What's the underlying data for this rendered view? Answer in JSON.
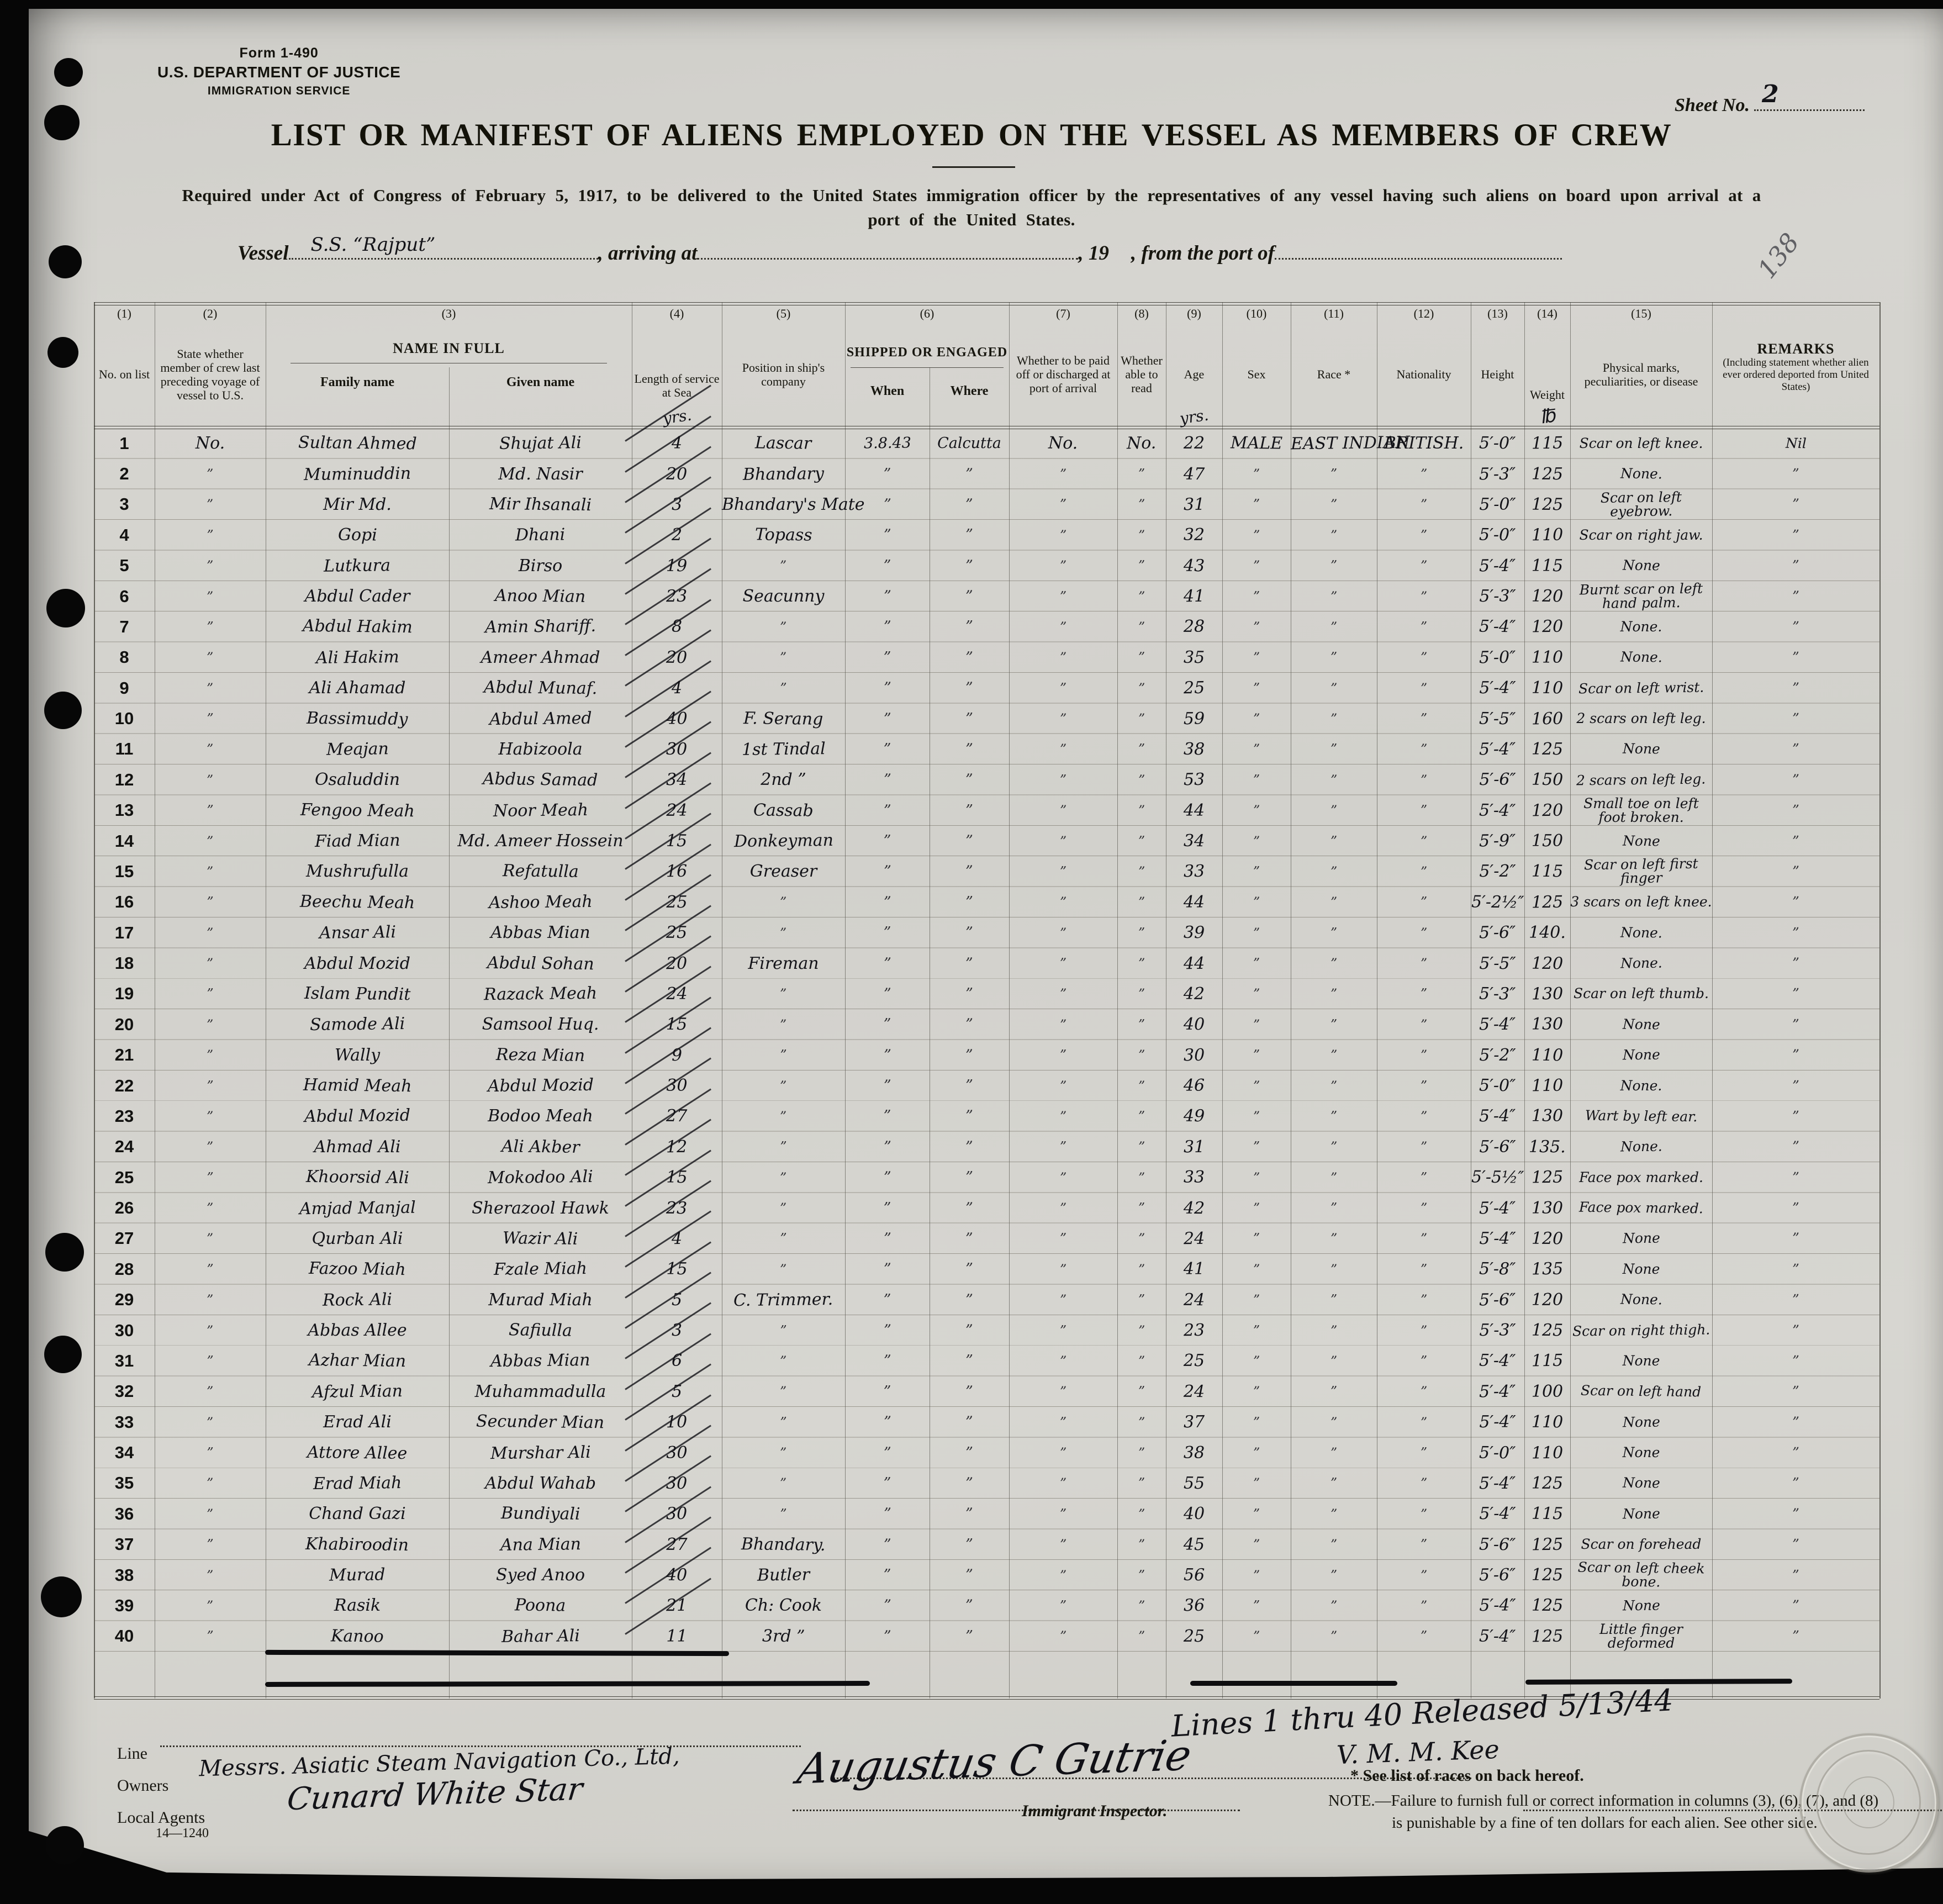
{
  "form": {
    "form_no": "Form 1-490",
    "dept": "U.S. DEPARTMENT OF JUSTICE",
    "service": "IMMIGRATION SERVICE",
    "sheet_label": "Sheet No.",
    "sheet_value": "2",
    "stamp_number": "138",
    "title": "LIST OR MANIFEST OF ALIENS EMPLOYED ON THE VESSEL AS MEMBERS OF CREW",
    "subtitle1": "Required under Act of Congress of February 5, 1917, to be delivered to the United States immigration officer by the representatives of any vessel having such aliens on board upon arrival at a",
    "subtitle2": "port of the United States.",
    "vessel_label": "Vessel",
    "vessel_value": "S.S. “Rajput”",
    "arriving_label": ", arriving at",
    "year_label": ", 19",
    "from_port_label": ", from the port of"
  },
  "table": {
    "numbers": [
      "(1)",
      "(2)",
      "(3)",
      "(4)",
      "(5)",
      "(6)",
      "(7)",
      "(8)",
      "(9)",
      "(10)",
      "(11)",
      "(12)",
      "(13)",
      "(14)",
      "(15)"
    ],
    "headers": {
      "no_on_list": "No. on list",
      "state_whether": "State whether member of crew last preceding voyage of vessel to U.S.",
      "name_in_full": "NAME IN FULL",
      "family_name": "Family name",
      "given_name": "Given name",
      "length_of_service": "Length of service at Sea",
      "length_unit_hw": "yrs.",
      "position": "Position in ship's company",
      "shipped_or_engaged": "SHIPPED OR ENGAGED",
      "when": "When",
      "where": "Where",
      "paid_off": "Whether to be paid off or discharged at port of arrival",
      "able_to_read": "Whether able to read",
      "age": "Age",
      "age_unit_hw": "yrs.",
      "sex": "Sex",
      "race": "Race *",
      "nationality": "Nationality",
      "height": "Height",
      "weight": "Weight",
      "weight_unit_hw": "℔",
      "marks": "Physical marks, peculiarities, or disease",
      "remarks_title": "REMARKS",
      "remarks_sub": "(Including statement whether alien ever ordered deported from United States)"
    },
    "rows": [
      [
        "1",
        "No.",
        "Sultan Ahmed",
        "Shujat Ali",
        "4",
        "Lascar",
        "3.8.43",
        "Calcutta",
        "No.",
        "No.",
        "22",
        "MALE",
        "EAST INDIAN",
        "BRITISH.",
        "5′-0″",
        "115",
        "Scar on left knee.",
        "Nil"
      ],
      [
        "2",
        "”",
        "Muminuddin",
        "Md. Nasir",
        "20",
        "Bhandary",
        "”",
        "”",
        "”",
        "”",
        "47",
        "”",
        "”",
        "”",
        "5′-3″",
        "125",
        "None.",
        "”"
      ],
      [
        "3",
        "”",
        "Mir Md.",
        "Mir Ihsanali",
        "3",
        "Bhandary's Mate",
        "”",
        "”",
        "”",
        "”",
        "31",
        "”",
        "”",
        "”",
        "5′-0″",
        "125",
        "Scar on left eyebrow.",
        "”"
      ],
      [
        "4",
        "”",
        "Gopi",
        "Dhani",
        "2",
        "Topass",
        "”",
        "”",
        "”",
        "”",
        "32",
        "”",
        "”",
        "”",
        "5′-0″",
        "110",
        "Scar on right jaw.",
        "”"
      ],
      [
        "5",
        "”",
        "Lutkura",
        "Birso",
        "19",
        "”",
        "”",
        "”",
        "”",
        "”",
        "43",
        "”",
        "”",
        "”",
        "5′-4″",
        "115",
        "None",
        "”"
      ],
      [
        "6",
        "”",
        "Abdul Cader",
        "Anoo Mian",
        "23",
        "Seacunny",
        "”",
        "”",
        "”",
        "”",
        "41",
        "”",
        "”",
        "”",
        "5′-3″",
        "120",
        "Burnt scar on left hand palm.",
        "”"
      ],
      [
        "7",
        "”",
        "Abdul Hakim",
        "Amin Shariff.",
        "8",
        "”",
        "”",
        "”",
        "”",
        "”",
        "28",
        "”",
        "”",
        "”",
        "5′-4″",
        "120",
        "None.",
        "”"
      ],
      [
        "8",
        "”",
        "Ali Hakim",
        "Ameer Ahmad",
        "20",
        "”",
        "”",
        "”",
        "”",
        "”",
        "35",
        "”",
        "”",
        "”",
        "5′-0″",
        "110",
        "None.",
        "”"
      ],
      [
        "9",
        "”",
        "Ali Ahamad",
        "Abdul Munaf.",
        "4",
        "”",
        "”",
        "”",
        "”",
        "”",
        "25",
        "”",
        "”",
        "”",
        "5′-4″",
        "110",
        "Scar on left wrist.",
        "”"
      ],
      [
        "10",
        "”",
        "Bassimuddy",
        "Abdul Amed",
        "40",
        "F. Serang",
        "”",
        "”",
        "”",
        "”",
        "59",
        "”",
        "”",
        "”",
        "5′-5″",
        "160",
        "2 scars on left leg.",
        "”"
      ],
      [
        "11",
        "”",
        "Meajan",
        "Habizoola",
        "30",
        "1st Tindal",
        "”",
        "”",
        "”",
        "”",
        "38",
        "”",
        "”",
        "”",
        "5′-4″",
        "125",
        "None",
        "”"
      ],
      [
        "12",
        "”",
        "Osaluddin",
        "Abdus Samad",
        "34",
        "2nd ”",
        "”",
        "”",
        "”",
        "”",
        "53",
        "”",
        "”",
        "”",
        "5′-6″",
        "150",
        "2 scars on left leg.",
        "”"
      ],
      [
        "13",
        "”",
        "Fengoo Meah",
        "Noor Meah",
        "24",
        "Cassab",
        "”",
        "”",
        "”",
        "”",
        "44",
        "”",
        "”",
        "”",
        "5′-4″",
        "120",
        "Small toe on left foot broken.",
        "”"
      ],
      [
        "14",
        "”",
        "Fiad Mian",
        "Md. Ameer Hossein",
        "15",
        "Donkeyman",
        "”",
        "”",
        "”",
        "”",
        "34",
        "”",
        "”",
        "”",
        "5′-9″",
        "150",
        "None",
        "”"
      ],
      [
        "15",
        "”",
        "Mushrufulla",
        "Refatulla",
        "16",
        "Greaser",
        "”",
        "”",
        "”",
        "”",
        "33",
        "”",
        "”",
        "”",
        "5′-2″",
        "115",
        "Scar on left first finger",
        "”"
      ],
      [
        "16",
        "”",
        "Beechu Meah",
        "Ashoo Meah",
        "25",
        "”",
        "”",
        "”",
        "”",
        "”",
        "44",
        "”",
        "”",
        "”",
        "5′-2½″",
        "125",
        "3 scars on left knee.",
        "”"
      ],
      [
        "17",
        "”",
        "Ansar Ali",
        "Abbas Mian",
        "25",
        "”",
        "”",
        "”",
        "”",
        "”",
        "39",
        "”",
        "”",
        "”",
        "5′-6″",
        "140.",
        "None.",
        "”"
      ],
      [
        "18",
        "”",
        "Abdul Mozid",
        "Abdul Sohan",
        "20",
        "Fireman",
        "”",
        "”",
        "”",
        "”",
        "44",
        "”",
        "”",
        "”",
        "5′-5″",
        "120",
        "None.",
        "”"
      ],
      [
        "19",
        "”",
        "Islam Pundit",
        "Razack Meah",
        "24",
        "”",
        "”",
        "”",
        "”",
        "”",
        "42",
        "”",
        "”",
        "”",
        "5′-3″",
        "130",
        "Scar on left thumb.",
        "”"
      ],
      [
        "20",
        "”",
        "Samode Ali",
        "Samsool Huq.",
        "15",
        "”",
        "”",
        "”",
        "”",
        "”",
        "40",
        "”",
        "”",
        "”",
        "5′-4″",
        "130",
        "None",
        "”"
      ],
      [
        "21",
        "”",
        "Wally",
        "Reza Mian",
        "9",
        "”",
        "”",
        "”",
        "”",
        "”",
        "30",
        "”",
        "”",
        "”",
        "5′-2″",
        "110",
        "None",
        "”"
      ],
      [
        "22",
        "”",
        "Hamid Meah",
        "Abdul Mozid",
        "30",
        "”",
        "”",
        "”",
        "”",
        "”",
        "46",
        "”",
        "”",
        "”",
        "5′-0″",
        "110",
        "None.",
        "”"
      ],
      [
        "23",
        "”",
        "Abdul Mozid",
        "Bodoo Meah",
        "27",
        "”",
        "”",
        "”",
        "”",
        "”",
        "49",
        "”",
        "”",
        "”",
        "5′-4″",
        "130",
        "Wart by left ear.",
        "”"
      ],
      [
        "24",
        "”",
        "Ahmad Ali",
        "Ali Akber",
        "12",
        "”",
        "”",
        "”",
        "”",
        "”",
        "31",
        "”",
        "”",
        "”",
        "5′-6″",
        "135.",
        "None.",
        "”"
      ],
      [
        "25",
        "”",
        "Khoorsid Ali",
        "Mokodoo Ali",
        "15",
        "”",
        "”",
        "”",
        "”",
        "”",
        "33",
        "”",
        "”",
        "”",
        "5′-5½″",
        "125",
        "Face pox marked.",
        "”"
      ],
      [
        "26",
        "”",
        "Amjad Manjal",
        "Sherazool Hawk",
        "23",
        "”",
        "”",
        "”",
        "”",
        "”",
        "42",
        "”",
        "”",
        "”",
        "5′-4″",
        "130",
        "Face pox marked.",
        "”"
      ],
      [
        "27",
        "”",
        "Qurban Ali",
        "Wazir Ali",
        "4",
        "”",
        "”",
        "”",
        "”",
        "”",
        "24",
        "”",
        "”",
        "”",
        "5′-4″",
        "120",
        "None",
        "”"
      ],
      [
        "28",
        "”",
        "Fazoo Miah",
        "Fzale Miah",
        "15",
        "”",
        "”",
        "”",
        "”",
        "”",
        "41",
        "”",
        "”",
        "”",
        "5′-8″",
        "135",
        "None",
        "”"
      ],
      [
        "29",
        "”",
        "Rock Ali",
        "Murad Miah",
        "5",
        "C. Trimmer.",
        "”",
        "”",
        "”",
        "”",
        "24",
        "”",
        "”",
        "”",
        "5′-6″",
        "120",
        "None.",
        "”"
      ],
      [
        "30",
        "”",
        "Abbas Allee",
        "Safiulla",
        "3",
        "”",
        "”",
        "”",
        "”",
        "”",
        "23",
        "”",
        "”",
        "”",
        "5′-3″",
        "125",
        "Scar on right thigh.",
        "”"
      ],
      [
        "31",
        "”",
        "Azhar Mian",
        "Abbas Mian",
        "6",
        "”",
        "”",
        "”",
        "”",
        "”",
        "25",
        "”",
        "”",
        "”",
        "5′-4″",
        "115",
        "None",
        "”"
      ],
      [
        "32",
        "”",
        "Afzul Mian",
        "Muhammadulla",
        "5",
        "”",
        "”",
        "”",
        "”",
        "”",
        "24",
        "”",
        "”",
        "”",
        "5′-4″",
        "100",
        "Scar on left hand",
        "”"
      ],
      [
        "33",
        "”",
        "Erad Ali",
        "Secunder Mian",
        "10",
        "”",
        "”",
        "”",
        "”",
        "”",
        "37",
        "”",
        "”",
        "”",
        "5′-4″",
        "110",
        "None",
        "”"
      ],
      [
        "34",
        "”",
        "Attore Allee",
        "Murshar Ali",
        "30",
        "”",
        "”",
        "”",
        "”",
        "”",
        "38",
        "”",
        "”",
        "”",
        "5′-0″",
        "110",
        "None",
        "”"
      ],
      [
        "35",
        "”",
        "Erad Miah",
        "Abdul Wahab",
        "30",
        "”",
        "”",
        "”",
        "”",
        "”",
        "55",
        "”",
        "”",
        "”",
        "5′-4″",
        "125",
        "None",
        "”"
      ],
      [
        "36",
        "”",
        "Chand Gazi",
        "Bundiyali",
        "30",
        "”",
        "”",
        "”",
        "”",
        "”",
        "40",
        "”",
        "”",
        "”",
        "5′-4″",
        "115",
        "None",
        "”"
      ],
      [
        "37",
        "”",
        "Khabiroodin",
        "Ana Mian",
        "27",
        "Bhandary.",
        "”",
        "”",
        "”",
        "”",
        "45",
        "”",
        "”",
        "”",
        "5′-6″",
        "125",
        "Scar on forehead",
        "”"
      ],
      [
        "38",
        "”",
        "Murad",
        "Syed Anoo",
        "40",
        "Butler",
        "”",
        "”",
        "”",
        "”",
        "56",
        "”",
        "”",
        "”",
        "5′-6″",
        "125",
        "Scar on left cheek bone.",
        "”"
      ],
      [
        "39",
        "”",
        "Rasik",
        "Poona",
        "21",
        "Ch: Cook",
        "”",
        "”",
        "”",
        "”",
        "36",
        "”",
        "”",
        "”",
        "5′-4″",
        "125",
        "None",
        "”"
      ],
      [
        "40",
        "”",
        "Kanoo",
        "Bahar Ali",
        "11",
        "3rd ”",
        "”",
        "”",
        "”",
        "”",
        "25",
        "”",
        "”",
        "”",
        "5′-4″",
        "125",
        "Little finger deformed",
        "”"
      ]
    ]
  },
  "footer": {
    "released_line1": "Lines 1 thru 40 Released 5/13/44",
    "released_line2": "V. M. M. Kee",
    "line_label": "Line",
    "owners_label": "Owners",
    "owners_value": "Messrs. Asiatic Steam Navigation Co., Ltd,",
    "agents_label": "Local Agents",
    "agents_value": "Cunard White Star",
    "form_code": "14—1240",
    "signature": "Augustus C Gutrie",
    "inspector_label": "Immigrant Inspector.",
    "races_note": "* See list of races on back hereof.",
    "note_line1": "NOTE.—Failure to furnish full or correct information in columns (3), (6), (7), and (8)",
    "note_line2": "is punishable by a fine of ten dollars for each alien.  See other side."
  }
}
